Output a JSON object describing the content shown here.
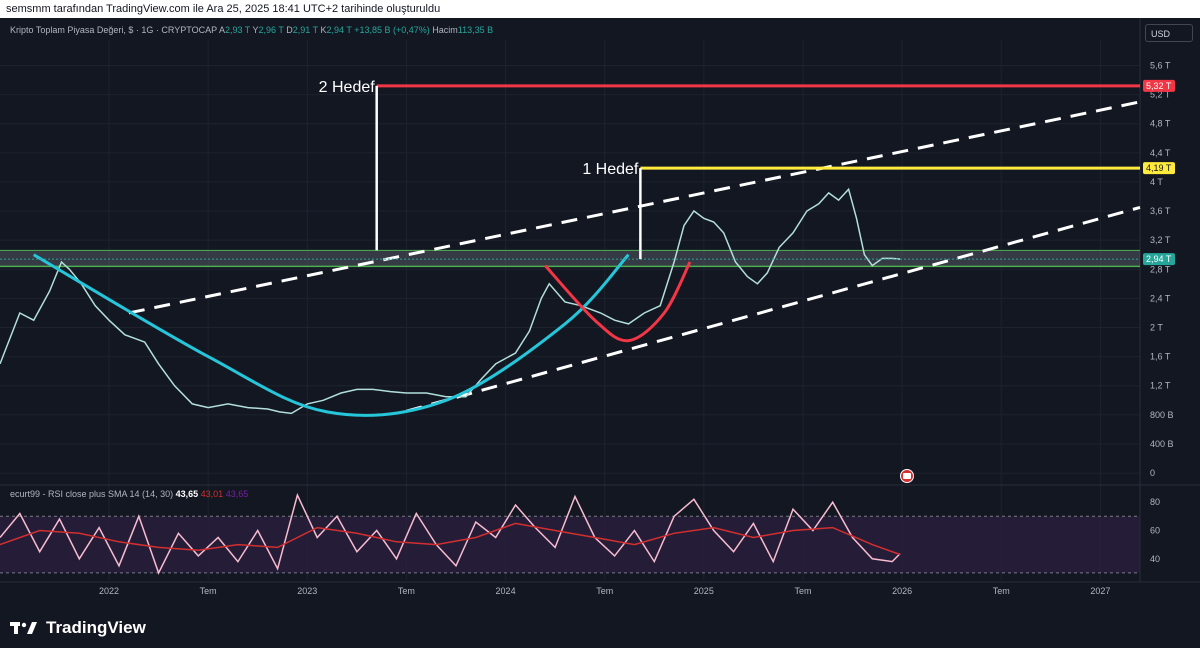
{
  "header": {
    "attribution": "semsmm tarafından TradingView.com ile Ara 25, 2025 18:41 UTC+2 tarihinde oluşturuldu"
  },
  "legend": {
    "symbol": "Kripto Toplam Piyasa Değeri, $ · 1G · CRYPTOCAP",
    "o_label": "A",
    "o_value": "2,93 T",
    "h_label": "Y",
    "h_value": "2,96 T",
    "l_label": "D",
    "l_value": "2,91 T",
    "c_label": "K",
    "c_value": "2,94 T",
    "change": "+13,85 B (+0,47%)",
    "vol_label": "Hacim",
    "vol_value": "113,35 B"
  },
  "currency_button": "USD",
  "rsi_legend": {
    "name": "ecurt99 - RSI close plus SMA 14 (14, 30)",
    "rsi_value": "43,65",
    "sma_value": "43,01",
    "extra_value": "43,65"
  },
  "brand": "TradingView",
  "colors": {
    "background": "#131722",
    "grid": "#1e222d",
    "target_red": "#f23645",
    "target_yellow": "#ffeb3b",
    "support_green": "#4caf50",
    "current_price": "#26a69a",
    "cup_curve": "#26c6da",
    "handle_curve": "#f23645",
    "rsi_line": "#f8bbd0",
    "rsi_sma": "#d32f2f",
    "rsi_band": "#2a1f3d"
  },
  "chart_data": [
    {
      "type": "line",
      "title": "Kripto Toplam Piyasa Değeri",
      "x_tick_labels": [
        "2022",
        "Tem",
        "2023",
        "Tem",
        "2024",
        "Tem",
        "2025",
        "Tem",
        "2026",
        "Tem",
        "2027"
      ],
      "y_tick_labels": [
        "0",
        "400 B",
        "800 B",
        "1,2 T",
        "1,6 T",
        "2 T",
        "2,4 T",
        "2,8 T",
        "3,2 T",
        "3,6 T",
        "4 T",
        "4,4 T",
        "4,8 T",
        "5,2 T",
        "5,6 T"
      ],
      "y_ticks": [
        0,
        0.4,
        0.8,
        1.2,
        1.6,
        2.0,
        2.4,
        2.8,
        3.2,
        3.6,
        4.0,
        4.4,
        4.8,
        5.2,
        5.6
      ],
      "y_unit": "T USD",
      "ylim": [
        -0.15,
        5.95
      ],
      "x_unit": "year (fractional)",
      "xlim": [
        2021.45,
        2027.2
      ],
      "price_series": {
        "x": [
          2021.45,
          2021.55,
          2021.62,
          2021.7,
          2021.76,
          2021.8,
          2021.86,
          2021.93,
          2022.0,
          2022.08,
          2022.18,
          2022.25,
          2022.33,
          2022.42,
          2022.5,
          2022.6,
          2022.7,
          2022.8,
          2022.86,
          2022.92,
          2023.0,
          2023.08,
          2023.17,
          2023.25,
          2023.33,
          2023.42,
          2023.5,
          2023.6,
          2023.7,
          2023.8,
          2023.88,
          2023.95,
          2024.05,
          2024.12,
          2024.18,
          2024.22,
          2024.3,
          2024.38,
          2024.48,
          2024.55,
          2024.62,
          2024.7,
          2024.78,
          2024.85,
          2024.9,
          2024.95,
          2025.0,
          2025.05,
          2025.1,
          2025.16,
          2025.22,
          2025.27,
          2025.32,
          2025.38,
          2025.45,
          2025.52,
          2025.58,
          2025.63,
          2025.68,
          2025.73,
          2025.77,
          2025.81,
          2025.85,
          2025.9,
          2025.95,
          2025.99
        ],
        "values": [
          1.5,
          2.2,
          2.1,
          2.5,
          2.9,
          2.8,
          2.6,
          2.3,
          2.1,
          1.9,
          1.8,
          1.5,
          1.2,
          0.95,
          0.9,
          0.95,
          0.9,
          0.88,
          0.84,
          0.82,
          0.95,
          1.0,
          1.1,
          1.15,
          1.15,
          1.12,
          1.1,
          1.1,
          1.05,
          1.05,
          1.3,
          1.5,
          1.65,
          1.95,
          2.4,
          2.6,
          2.35,
          2.3,
          2.2,
          2.1,
          2.05,
          2.2,
          2.3,
          2.9,
          3.4,
          3.6,
          3.5,
          3.45,
          3.3,
          2.9,
          2.7,
          2.6,
          2.75,
          3.1,
          3.3,
          3.6,
          3.7,
          3.85,
          3.75,
          3.9,
          3.5,
          3.0,
          2.85,
          2.95,
          2.95,
          2.94
        ]
      },
      "horizontal_levels": [
        {
          "label": "5,32 T",
          "value": 5.32,
          "color_key": "target_red"
        },
        {
          "label": "4,19 T",
          "value": 4.19,
          "color_key": "target_yellow"
        },
        {
          "label": "2,94 T",
          "value": 2.94,
          "color_key": "current_price"
        }
      ],
      "support_zone": [
        2.84,
        3.06
      ],
      "annotations": [
        {
          "text": "2 Hedef",
          "x": 2023.35,
          "y_bottom": 3.06,
          "y_top": 5.32
        },
        {
          "text": "1 Hedef",
          "x": 2024.68,
          "y_bottom": 2.94,
          "y_top": 4.19
        }
      ],
      "channel_upper": {
        "x": [
          2022.1,
          2027.2
        ],
        "values": [
          2.2,
          5.1
        ]
      },
      "channel_lower": {
        "x": [
          2023.5,
          2027.2
        ],
        "values": [
          0.85,
          3.65
        ]
      },
      "cup_curve": {
        "x": [
          2021.62,
          2022.5,
          2023.1,
          2023.7,
          2024.3,
          2024.62
        ],
        "values": [
          3.0,
          1.6,
          0.84,
          1.0,
          2.05,
          3.0
        ]
      },
      "handle_curve": {
        "x": [
          2024.2,
          2024.45,
          2024.62,
          2024.8,
          2024.93
        ],
        "values": [
          2.85,
          2.1,
          1.82,
          2.2,
          2.9
        ]
      }
    },
    {
      "type": "line",
      "title": "RSI close plus SMA 14",
      "y_tick_labels": [
        "40",
        "60",
        "80"
      ],
      "y_ticks": [
        40,
        60,
        80
      ],
      "ylim": [
        25,
        90
      ],
      "bands": [
        30,
        70
      ],
      "rsi_series": {
        "x": [
          2021.45,
          2021.55,
          2021.65,
          2021.75,
          2021.85,
          2021.95,
          2022.05,
          2022.15,
          2022.25,
          2022.35,
          2022.45,
          2022.55,
          2022.65,
          2022.75,
          2022.85,
          2022.95,
          2023.05,
          2023.15,
          2023.25,
          2023.35,
          2023.45,
          2023.55,
          2023.65,
          2023.75,
          2023.85,
          2023.95,
          2024.05,
          2024.15,
          2024.25,
          2024.35,
          2024.45,
          2024.55,
          2024.65,
          2024.75,
          2024.85,
          2024.95,
          2025.05,
          2025.15,
          2025.25,
          2025.35,
          2025.45,
          2025.55,
          2025.65,
          2025.75,
          2025.85,
          2025.95,
          2025.99
        ],
        "values": [
          55,
          72,
          45,
          68,
          40,
          62,
          35,
          70,
          30,
          58,
          42,
          55,
          38,
          60,
          33,
          85,
          55,
          70,
          45,
          60,
          40,
          72,
          50,
          35,
          66,
          55,
          78,
          62,
          48,
          84,
          55,
          42,
          60,
          38,
          70,
          82,
          60,
          45,
          65,
          38,
          75,
          60,
          80,
          55,
          40,
          38,
          43.65
        ]
      },
      "sma_series": {
        "x": [
          2021.45,
          2021.65,
          2021.85,
          2022.05,
          2022.25,
          2022.45,
          2022.65,
          2022.85,
          2023.05,
          2023.25,
          2023.45,
          2023.65,
          2023.85,
          2024.05,
          2024.25,
          2024.45,
          2024.65,
          2024.85,
          2025.05,
          2025.25,
          2025.45,
          2025.65,
          2025.85,
          2025.99
        ],
        "values": [
          50,
          60,
          58,
          52,
          48,
          46,
          50,
          48,
          62,
          58,
          52,
          50,
          55,
          65,
          60,
          55,
          50,
          58,
          62,
          55,
          60,
          62,
          50,
          43.01
        ]
      }
    }
  ]
}
